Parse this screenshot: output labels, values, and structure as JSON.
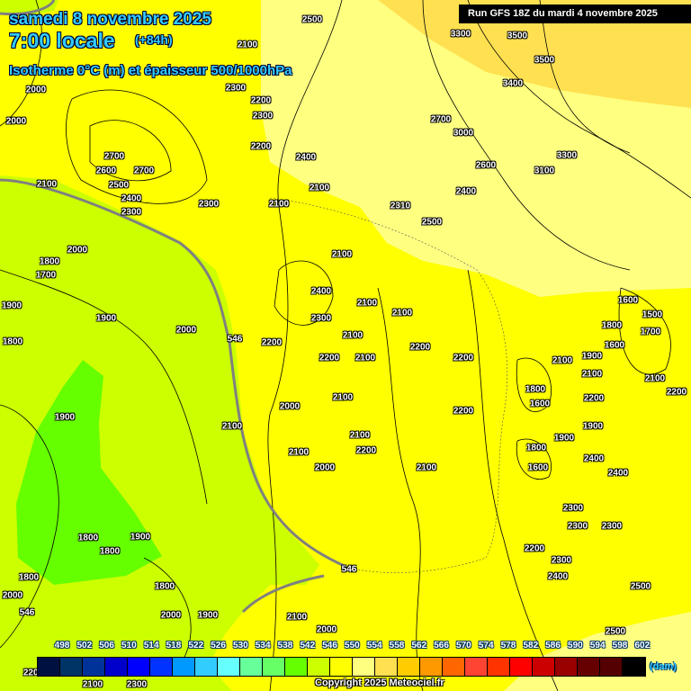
{
  "header": {
    "date": "samedi 8 novembre 2025",
    "time": "7:00 locale",
    "lead": "(+84h)",
    "parameter": "Isotherme 0°C (m) et épaisseur 500/1000hPa",
    "run": "Run GFS 18Z du mardi 4 novembre 2025"
  },
  "colors": {
    "band_542": "#66ff00",
    "band_546": "#ccff00",
    "band_550": "#ffff00",
    "band_554": "#ffff80",
    "band_558": "#ffe050"
  },
  "legend": {
    "unit": "(dam)",
    "values": [
      "498",
      "502",
      "506",
      "510",
      "514",
      "518",
      "522",
      "526",
      "530",
      "534",
      "538",
      "542",
      "546",
      "550",
      "554",
      "558",
      "562",
      "566",
      "570",
      "574",
      "578",
      "582",
      "586",
      "590",
      "594",
      "598",
      "602"
    ],
    "colors": [
      "#001040",
      "#003366",
      "#003399",
      "#0000cc",
      "#0000ff",
      "#0033ff",
      "#0099ff",
      "#33ccff",
      "#66ffff",
      "#66ff99",
      "#66ff66",
      "#66ff00",
      "#ccff00",
      "#ffff00",
      "#ffff80",
      "#ffe050",
      "#ffcc00",
      "#ff9900",
      "#ff6600",
      "#ff4433",
      "#ff3300",
      "#ff0000",
      "#cc0000",
      "#990000",
      "#660000",
      "#550000",
      "#000000"
    ]
  },
  "contour_labels": [
    "2100",
    "2000",
    "2500",
    "2000",
    "2300",
    "2200",
    "2300",
    "2700",
    "2600",
    "2700",
    "2500",
    "2400",
    "2300",
    "2100",
    "2200",
    "2400",
    "2100",
    "2100",
    "2300",
    "3300",
    "3500",
    "3500",
    "3400",
    "2700",
    "3000",
    "3300",
    "3100",
    "2600",
    "2400",
    "2310",
    "2500",
    "2000",
    "1800",
    "1700",
    "1900",
    "1900",
    "1800",
    "2000",
    "2100",
    "2400",
    "2300",
    "2200",
    "2100",
    "2100",
    "2100",
    "2100",
    "2200",
    "2200",
    "2200",
    "2100",
    "2000",
    "2200",
    "1600",
    "1800",
    "1500",
    "1700",
    "1600",
    "1900",
    "2100",
    "2100",
    "1800",
    "1600",
    "2200",
    "2100",
    "2200",
    "1900",
    "1800",
    "1600",
    "2400",
    "2400",
    "1900",
    "2100",
    "2200",
    "2100",
    "2000",
    "2100",
    "2100",
    "2300",
    "2300",
    "2300",
    "2200",
    "2300",
    "2400",
    "2500",
    "2500",
    "1800",
    "1800",
    "1900",
    "1800",
    "1800",
    "2000",
    "2000",
    "1900",
    "2100",
    "2000",
    "2200",
    "2100",
    "2300",
    "1900",
    "546",
    "546",
    "546"
  ],
  "copyright": "Copyright 2025 Meteociel.fr"
}
